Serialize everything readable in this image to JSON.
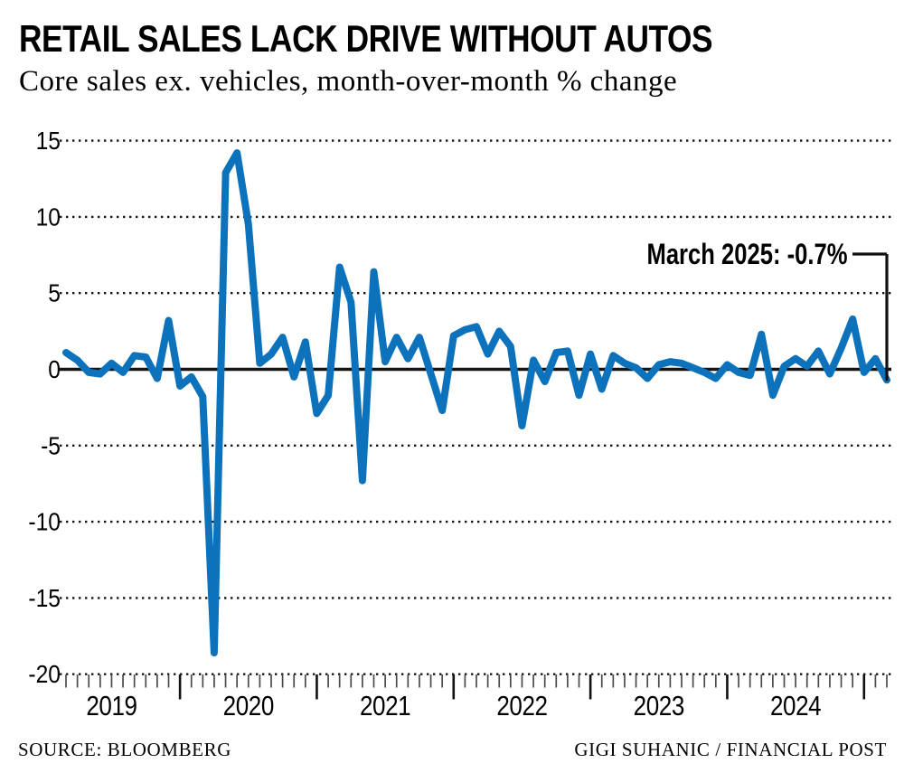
{
  "header": {
    "title": "RETAIL SALES LACK DRIVE WITHOUT AUTOS",
    "subtitle": "Core sales ex. vehicles, month-over-month % change"
  },
  "annotation": {
    "label": "March 2025: -0.7%"
  },
  "footer": {
    "source": "SOURCE: BLOOMBERG",
    "credit": "GIGI SUHANIC / FINANCIAL POST"
  },
  "chart_data": {
    "type": "line",
    "title": "RETAIL SALES LACK DRIVE WITHOUT AUTOS",
    "subtitle": "Core sales ex. vehicles, month-over-month % change",
    "ylabel": "month-over-month % change",
    "ylim": [
      -20,
      15
    ],
    "yticks": [
      15,
      10,
      5,
      0,
      -5,
      -10,
      -15,
      -20
    ],
    "grid": "dotted horizontal, solid zero line",
    "legend_position": "none",
    "x_year_labels": [
      "2019",
      "2020",
      "2021",
      "2022",
      "2023",
      "2024"
    ],
    "x_months": [
      "2019-03",
      "2019-04",
      "2019-05",
      "2019-06",
      "2019-07",
      "2019-08",
      "2019-09",
      "2019-10",
      "2019-11",
      "2019-12",
      "2020-01",
      "2020-02",
      "2020-03",
      "2020-04",
      "2020-05",
      "2020-06",
      "2020-07",
      "2020-08",
      "2020-09",
      "2020-10",
      "2020-11",
      "2020-12",
      "2021-01",
      "2021-02",
      "2021-03",
      "2021-04",
      "2021-05",
      "2021-06",
      "2021-07",
      "2021-08",
      "2021-09",
      "2021-10",
      "2021-11",
      "2021-12",
      "2022-01",
      "2022-02",
      "2022-03",
      "2022-04",
      "2022-05",
      "2022-06",
      "2022-07",
      "2022-08",
      "2022-09",
      "2022-10",
      "2022-11",
      "2022-12",
      "2023-01",
      "2023-02",
      "2023-03",
      "2023-04",
      "2023-05",
      "2023-06",
      "2023-07",
      "2023-08",
      "2023-09",
      "2023-10",
      "2023-11",
      "2023-12",
      "2024-01",
      "2024-02",
      "2024-03",
      "2024-04",
      "2024-05",
      "2024-06",
      "2024-07",
      "2024-08",
      "2024-09",
      "2024-10",
      "2024-11",
      "2024-12",
      "2025-01",
      "2025-02",
      "2025-03"
    ],
    "values": [
      1.1,
      0.6,
      -0.2,
      -0.3,
      0.4,
      -0.2,
      0.9,
      0.8,
      -0.6,
      3.2,
      -1.1,
      -0.5,
      -1.8,
      -18.6,
      12.9,
      14.2,
      9.5,
      0.4,
      1.0,
      2.1,
      -0.5,
      1.8,
      -2.9,
      -1.7,
      6.7,
      4.4,
      -7.3,
      6.4,
      0.5,
      2.1,
      0.7,
      2.1,
      -0.3,
      -2.7,
      2.2,
      2.6,
      2.8,
      1.0,
      2.5,
      1.5,
      -3.7,
      0.6,
      -0.8,
      1.1,
      1.2,
      -1.7,
      1.0,
      -1.3,
      0.9,
      0.4,
      0.1,
      -0.6,
      0.3,
      0.5,
      0.4,
      0.1,
      -0.2,
      -0.6,
      0.3,
      -0.2,
      -0.4,
      2.3,
      -1.7,
      0.2,
      0.7,
      0.2,
      1.2,
      -0.3,
      1.4,
      3.3,
      -0.2,
      0.7,
      -0.7
    ],
    "annotation_point": {
      "month": "2025-03",
      "value": -0.7,
      "label": "March 2025: -0.7%"
    },
    "line_color": "#0D72BC",
    "axis_color": "#151515"
  }
}
